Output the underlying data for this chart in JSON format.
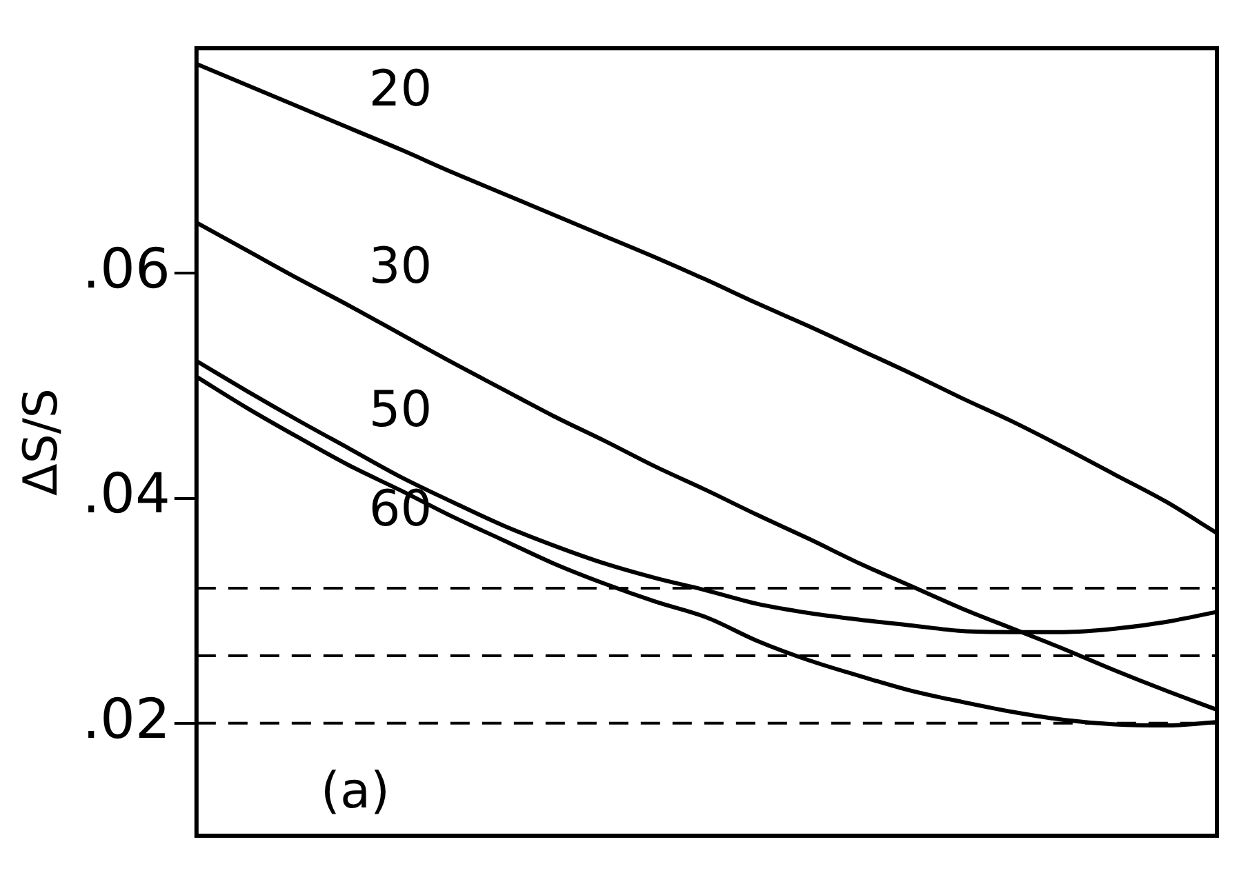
{
  "chart_data": {
    "type": "line",
    "ylabel": "ΔS/S",
    "categories": [
      null,
      null,
      null,
      null,
      null,
      null,
      null,
      null,
      null,
      null,
      null,
      null,
      null,
      null,
      null,
      null,
      null,
      null,
      null,
      null,
      null
    ],
    "series": [
      {
        "name": "20",
        "color": "#000000",
        "values": [
          0.0786,
          0.0767,
          0.0748,
          0.0729,
          0.071,
          0.069,
          0.0671,
          0.0652,
          0.0633,
          0.0614,
          0.0594,
          0.0573,
          0.0553,
          0.0532,
          0.0511,
          0.0489,
          0.0468,
          0.0445,
          0.0421,
          0.0397,
          0.0369
        ]
      },
      {
        "name": "30",
        "color": "#000000",
        "values": [
          0.0645,
          0.062,
          0.0595,
          0.0571,
          0.0546,
          0.0521,
          0.0497,
          0.0473,
          0.0451,
          0.0428,
          0.0407,
          0.0385,
          0.0364,
          0.0342,
          0.0322,
          0.0302,
          0.0284,
          0.0266,
          0.0247,
          0.0229,
          0.0212
        ]
      },
      {
        "name": "50",
        "color": "#000000",
        "values": [
          0.0522,
          0.0495,
          0.0469,
          0.0444,
          0.0419,
          0.0397,
          0.0376,
          0.0358,
          0.0342,
          0.0329,
          0.0318,
          0.0306,
          0.0298,
          0.0292,
          0.0287,
          0.0282,
          0.0281,
          0.0281,
          0.0284,
          0.029,
          0.0299
        ]
      },
      {
        "name": "60",
        "color": "#000000",
        "values": [
          0.0508,
          0.048,
          0.0454,
          0.0429,
          0.0407,
          0.0384,
          0.0363,
          0.0342,
          0.0324,
          0.0308,
          0.0294,
          0.0273,
          0.0256,
          0.0242,
          0.0229,
          0.0219,
          0.021,
          0.0203,
          0.0199,
          0.0198,
          0.0201
        ]
      }
    ],
    "ylim": [
      0.01,
      0.08
    ],
    "yticks": [
      {
        "value": 0.02,
        "label": ".02"
      },
      {
        "value": 0.04,
        "label": ".04"
      },
      {
        "value": 0.06,
        "label": ".06"
      }
    ],
    "ref_lines": [
      {
        "axis": "y",
        "value": 0.032,
        "line_style": "dashed"
      },
      {
        "axis": "y",
        "value": 0.026,
        "line_style": "dashed"
      },
      {
        "axis": "y",
        "value": 0.02,
        "line_style": "dashed"
      }
    ],
    "annotations": [
      "(a)"
    ],
    "grid": false,
    "legend": false,
    "marker": "none",
    "line_style": "solid",
    "tick_labels": "y"
  }
}
